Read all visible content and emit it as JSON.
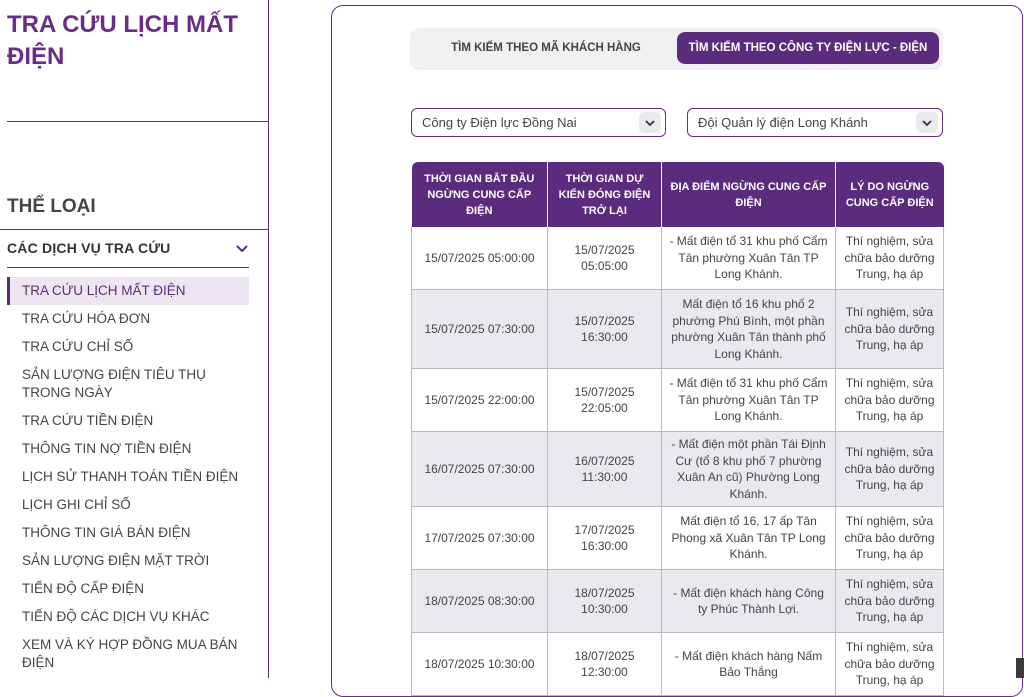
{
  "page_title": "TRA CỨU LỊCH MẤT ĐIỆN",
  "sidebar": {
    "section_title": "THỂ LOẠI",
    "group_label": "CÁC DỊCH VỤ TRA CỨU",
    "items": [
      {
        "label": "TRA CỨU LỊCH MẤT ĐIỆN"
      },
      {
        "label": "TRA CỨU HÓA ĐƠN"
      },
      {
        "label": "TRA CỨU CHỈ SỐ"
      },
      {
        "label": "SẢN LƯỢNG ĐIỆN TIÊU THỤ TRONG NGÀY"
      },
      {
        "label": "TRA CỨU TIỀN ĐIỆN"
      },
      {
        "label": "THÔNG TIN NỢ TIỀN ĐIỆN"
      },
      {
        "label": "LỊCH SỬ THANH TOÁN TIỀN ĐIỆN"
      },
      {
        "label": "LỊCH GHI CHỈ SỐ"
      },
      {
        "label": "THÔNG TIN GIÁ BÁN ĐIỆN"
      },
      {
        "label": "SẢN LƯỢNG ĐIỆN MẶT TRỜI"
      },
      {
        "label": "TIẾN ĐỘ CẤP ĐIỆN"
      },
      {
        "label": "TIẾN ĐỘ CÁC DỊCH VỤ KHÁC"
      },
      {
        "label": "XEM VÀ KÝ HỢP ĐỒNG MUA BÁN ĐIỆN"
      }
    ]
  },
  "tabs": [
    {
      "label": "TÌM KIẾM THEO MÃ KHÁCH HÀNG"
    },
    {
      "label": "TÌM KIẾM THEO CÔNG TY ĐIỆN LỰC - ĐIỆN LỰC"
    }
  ],
  "filters": {
    "company": "Công ty Điện lực Đồng Nai",
    "team": "Đội Quản lý điện Long Khánh"
  },
  "table": {
    "headers": [
      "THỜI GIAN BẮT ĐẦU NGỪNG CUNG CẤP ĐIỆN",
      "THỜI GIAN DỰ KIẾN ĐÓNG ĐIỆN TRỞ LẠI",
      "ĐỊA ĐIỂM NGỪNG CUNG CẤP ĐIỆN",
      "LÝ DO NGỪNG CUNG CẤP ĐIỆN"
    ],
    "rows": [
      {
        "start": "15/07/2025 05:00:00",
        "end": "15/07/2025 05:05:00",
        "location": "- Mất điện tổ 31 khu phố Cẩm Tân phường Xuân Tân TP Long Khánh.",
        "reason": "Thí nghiệm, sửa chữa bảo dưỡng Trung, hạ áp"
      },
      {
        "start": "15/07/2025 07:30:00",
        "end": "15/07/2025 16:30:00",
        "location": "Mất điện tổ 16 khu phố 2 phường Phú Bình, một phần phường Xuân Tân thành phố Long Khánh.",
        "reason": "Thí nghiệm, sửa chữa bảo dưỡng Trung, hạ áp"
      },
      {
        "start": "15/07/2025 22:00:00",
        "end": "15/07/2025 22:05:00",
        "location": "- Mất điện tổ 31 khu phố Cẩm Tân phường Xuân Tân TP Long Khánh.",
        "reason": "Thí nghiệm, sửa chữa bảo dưỡng Trung, hạ áp"
      },
      {
        "start": "16/07/2025 07:30:00",
        "end": "16/07/2025 11:30:00",
        "location": "- Mất điện một phần Tái Định Cư (tổ 8 khu phố 7 phường Xuân An cũ) Phường Long Khánh.",
        "reason": "Thí nghiệm, sửa chữa bảo dưỡng Trung, hạ áp"
      },
      {
        "start": "17/07/2025 07:30:00",
        "end": "17/07/2025 16:30:00",
        "location": "Mất điện tổ 16, 17 ấp Tân Phong xã Xuân Tân TP Long Khánh.",
        "reason": "Thí nghiệm, sửa chữa bảo dưỡng Trung, hạ áp"
      },
      {
        "start": "18/07/2025 08:30:00",
        "end": "18/07/2025 10:30:00",
        "location": "- Mất điện khách hàng Công ty Phúc Thành Lợi.",
        "reason": "Thí nghiệm, sửa chữa bảo dưỡng Trung, hạ áp"
      },
      {
        "start": "18/07/2025 10:30:00",
        "end": "18/07/2025 12:30:00",
        "location": "- Mất điện khách hàng Nấm Bảo Thắng",
        "reason": "Thí nghiệm, sửa chữa bảo dưỡng Trung, hạ áp"
      }
    ]
  },
  "colors": {
    "brand_purple": "#5b2c7e",
    "title_purple": "#6a2c8a",
    "row_alt": "#ece8ef"
  }
}
